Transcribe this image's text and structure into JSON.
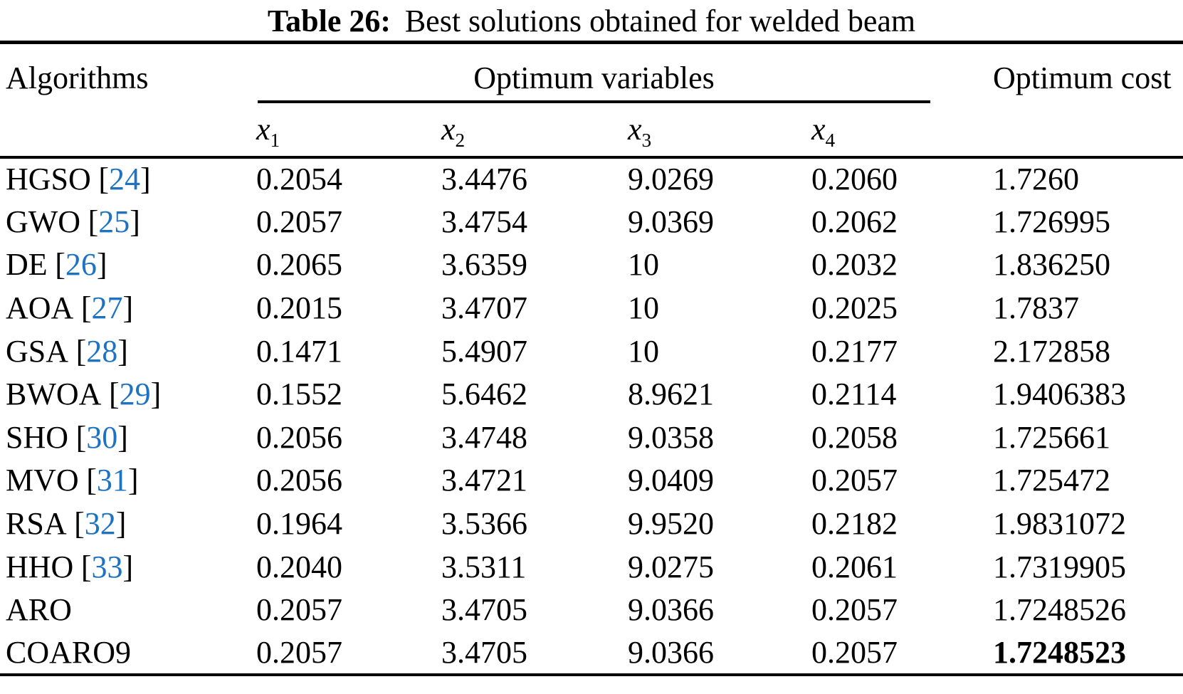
{
  "caption": {
    "label": "Table 26:",
    "text": "Best solutions obtained for welded beam"
  },
  "header": {
    "algorithms": "Algorithms",
    "optimum_variables": "Optimum variables",
    "optimum_cost": "Optimum cost",
    "variables": [
      {
        "base": "x",
        "sub": "1"
      },
      {
        "base": "x",
        "sub": "2"
      },
      {
        "base": "x",
        "sub": "3"
      },
      {
        "base": "x",
        "sub": "4"
      }
    ]
  },
  "colors": {
    "text": "#000000",
    "background": "#ffffff",
    "reference_blue": "#1d73c2"
  },
  "rows": [
    {
      "name": "HGSO",
      "ref_open": "[",
      "ref": "24",
      "ref_close": "]",
      "x1": "0.2054",
      "x2": "3.4476",
      "x3": "9.0269",
      "x4": "0.2060",
      "cost": "1.7260"
    },
    {
      "name": "GWO",
      "ref_open": "[",
      "ref": "25",
      "ref_close": "]",
      "x1": "0.2057",
      "x2": "3.4754",
      "x3": "9.0369",
      "x4": "0.2062",
      "cost": "1.726995"
    },
    {
      "name": "DE",
      "ref_open": "[",
      "ref": "26",
      "ref_close": "]",
      "x1": "0.2065",
      "x2": "3.6359",
      "x3": "10",
      "x4": "0.2032",
      "cost": "1.836250"
    },
    {
      "name": "AOA",
      "ref_open": "[",
      "ref": "27",
      "ref_close": "]",
      "x1": "0.2015",
      "x2": "3.4707",
      "x3": "10",
      "x4": "0.2025",
      "cost": "1.7837"
    },
    {
      "name": "GSA",
      "ref_open": "[",
      "ref": "28",
      "ref_close": "]",
      "x1": "0.1471",
      "x2": "5.4907",
      "x3": "10",
      "x4": "0.2177",
      "cost": "2.172858"
    },
    {
      "name": "BWOA",
      "ref_open": "[",
      "ref": "29",
      "ref_close": "]",
      "x1": "0.1552",
      "x2": "5.6462",
      "x3": "8.9621",
      "x4": "0.2114",
      "cost": "1.9406383"
    },
    {
      "name": "SHO",
      "ref_open": "[",
      "ref": "30",
      "ref_close": "]",
      "x1": "0.2056",
      "x2": "3.4748",
      "x3": "9.0358",
      "x4": "0.2058",
      "cost": "1.725661"
    },
    {
      "name": "MVO",
      "ref_open": "[",
      "ref": "31",
      "ref_close": "]",
      "x1": "0.2056",
      "x2": "3.4721",
      "x3": "9.0409",
      "x4": "0.2057",
      "cost": "1.725472"
    },
    {
      "name": "RSA",
      "ref_open": "[",
      "ref": "32",
      "ref_close": "]",
      "x1": "0.1964",
      "x2": "3.5366",
      "x3": "9.9520",
      "x4": "0.2182",
      "cost": "1.9831072"
    },
    {
      "name": "HHO",
      "ref_open": "[",
      "ref": "33",
      "ref_close": "]",
      "x1": "0.2040",
      "x2": "3.5311",
      "x3": "9.0275",
      "x4": "0.2061",
      "cost": "1.7319905"
    },
    {
      "name": "ARO",
      "ref_open": "",
      "ref": "",
      "ref_close": "",
      "x1": "0.2057",
      "x2": "3.4705",
      "x3": "9.0366",
      "x4": "0.2057",
      "cost": "1.7248526"
    },
    {
      "name": "COARO9",
      "ref_open": "",
      "ref": "",
      "ref_close": "",
      "x1": "0.2057",
      "x2": "3.4705",
      "x3": "9.0366",
      "x4": "0.2057",
      "cost": "1.7248523"
    }
  ]
}
